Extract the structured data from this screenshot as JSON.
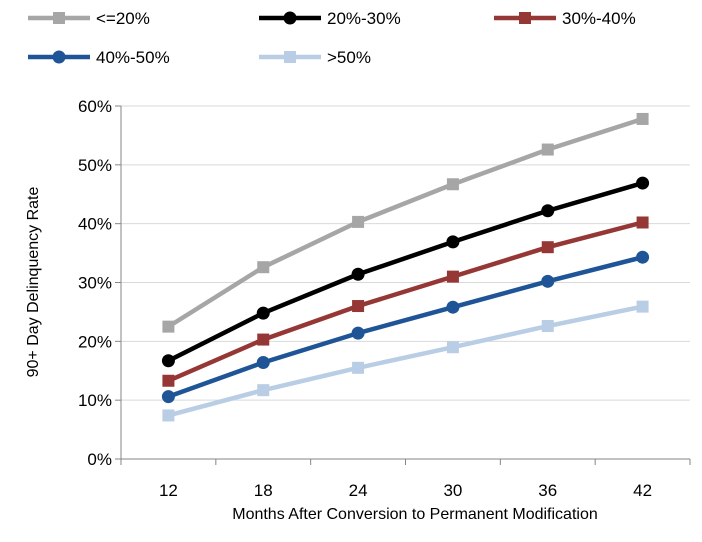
{
  "chart_data": {
    "type": "line",
    "title": "",
    "xlabel": "Months After Conversion to Permanent Modification",
    "ylabel": "90+ Day Delinquency Rate",
    "categories": [
      "12",
      "18",
      "24",
      "30",
      "36",
      "42"
    ],
    "ylim": [
      0,
      60
    ],
    "yticks": [
      "0%",
      "10%",
      "20%",
      "30%",
      "40%",
      "50%",
      "60%"
    ],
    "ytick_values": [
      0,
      10,
      20,
      30,
      40,
      50,
      60
    ],
    "grid": true,
    "legend_position": "top",
    "series": [
      {
        "name": "<=20%",
        "values": [
          22.5,
          32.6,
          40.3,
          46.7,
          52.6,
          57.8
        ],
        "color": "#a6a6a6",
        "marker": "square"
      },
      {
        "name": "20%-30%",
        "values": [
          16.7,
          24.8,
          31.4,
          36.9,
          42.2,
          46.9
        ],
        "color": "#000000",
        "marker": "circle"
      },
      {
        "name": "30%-40%",
        "values": [
          13.3,
          20.3,
          26.0,
          31.0,
          36.0,
          40.2
        ],
        "color": "#953735",
        "marker": "square"
      },
      {
        "name": "40%-50%",
        "values": [
          10.6,
          16.4,
          21.4,
          25.8,
          30.2,
          34.3
        ],
        "color": "#1f5597",
        "marker": "circle"
      },
      {
        "name": ">50%",
        "values": [
          7.4,
          11.7,
          15.5,
          19.0,
          22.6,
          25.9
        ],
        "color": "#b9cde5",
        "marker": "square"
      }
    ]
  }
}
